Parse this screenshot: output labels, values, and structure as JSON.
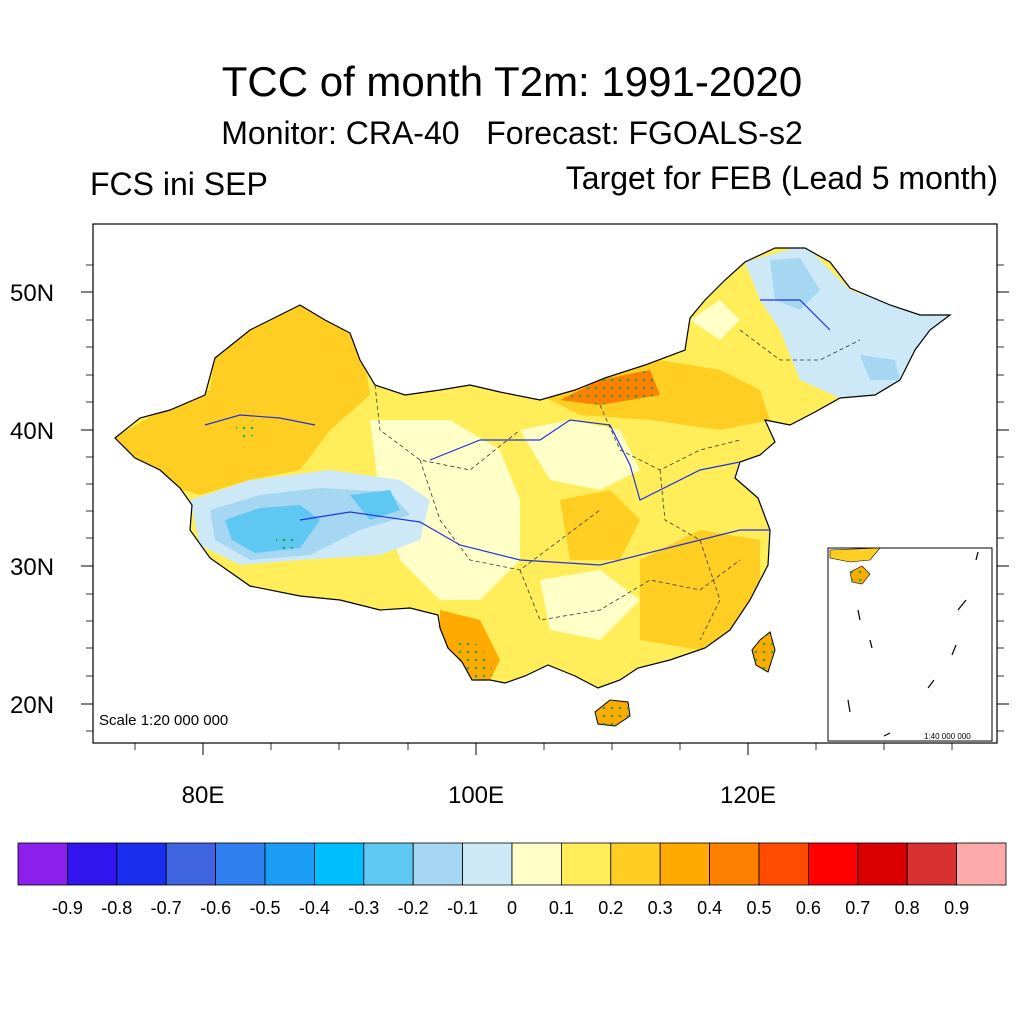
{
  "title": "TCC of month T2m: 1991-2020",
  "subtitle": {
    "monitor": "Monitor: CRA-40",
    "forecast": "Forecast: FGOALS-s2"
  },
  "left_label": "FCS ini SEP",
  "right_label": "Target for FEB (Lead 5 month)",
  "map": {
    "lat_labels": [
      "50N",
      "40N",
      "30N",
      "20N"
    ],
    "lon_labels": [
      "80E",
      "100E",
      "120E"
    ],
    "scale_main": "Scale 1:20 000 000",
    "scale_inset": "1:40 000 000"
  },
  "colorbar": {
    "colors": [
      "#8b1fee",
      "#3214ef",
      "#1a2ef0",
      "#3f64e0",
      "#2f80ee",
      "#1c9df5",
      "#00bfff",
      "#5ec7f2",
      "#a5d7f2",
      "#cde9f7",
      "#ffffc8",
      "#ffee5a",
      "#ffce23",
      "#ffaa00",
      "#ff7f00",
      "#ff4c00",
      "#ff0000",
      "#d80000",
      "#d93131",
      "#ffaaaa"
    ],
    "labels": [
      "-0.9",
      "-0.8",
      "-0.7",
      "-0.6",
      "-0.5",
      "-0.4",
      "-0.3",
      "-0.2",
      "-0.1",
      "0",
      "0.1",
      "0.2",
      "0.3",
      "0.4",
      "0.5",
      "0.6",
      "0.7",
      "0.8",
      "0.9"
    ]
  }
}
